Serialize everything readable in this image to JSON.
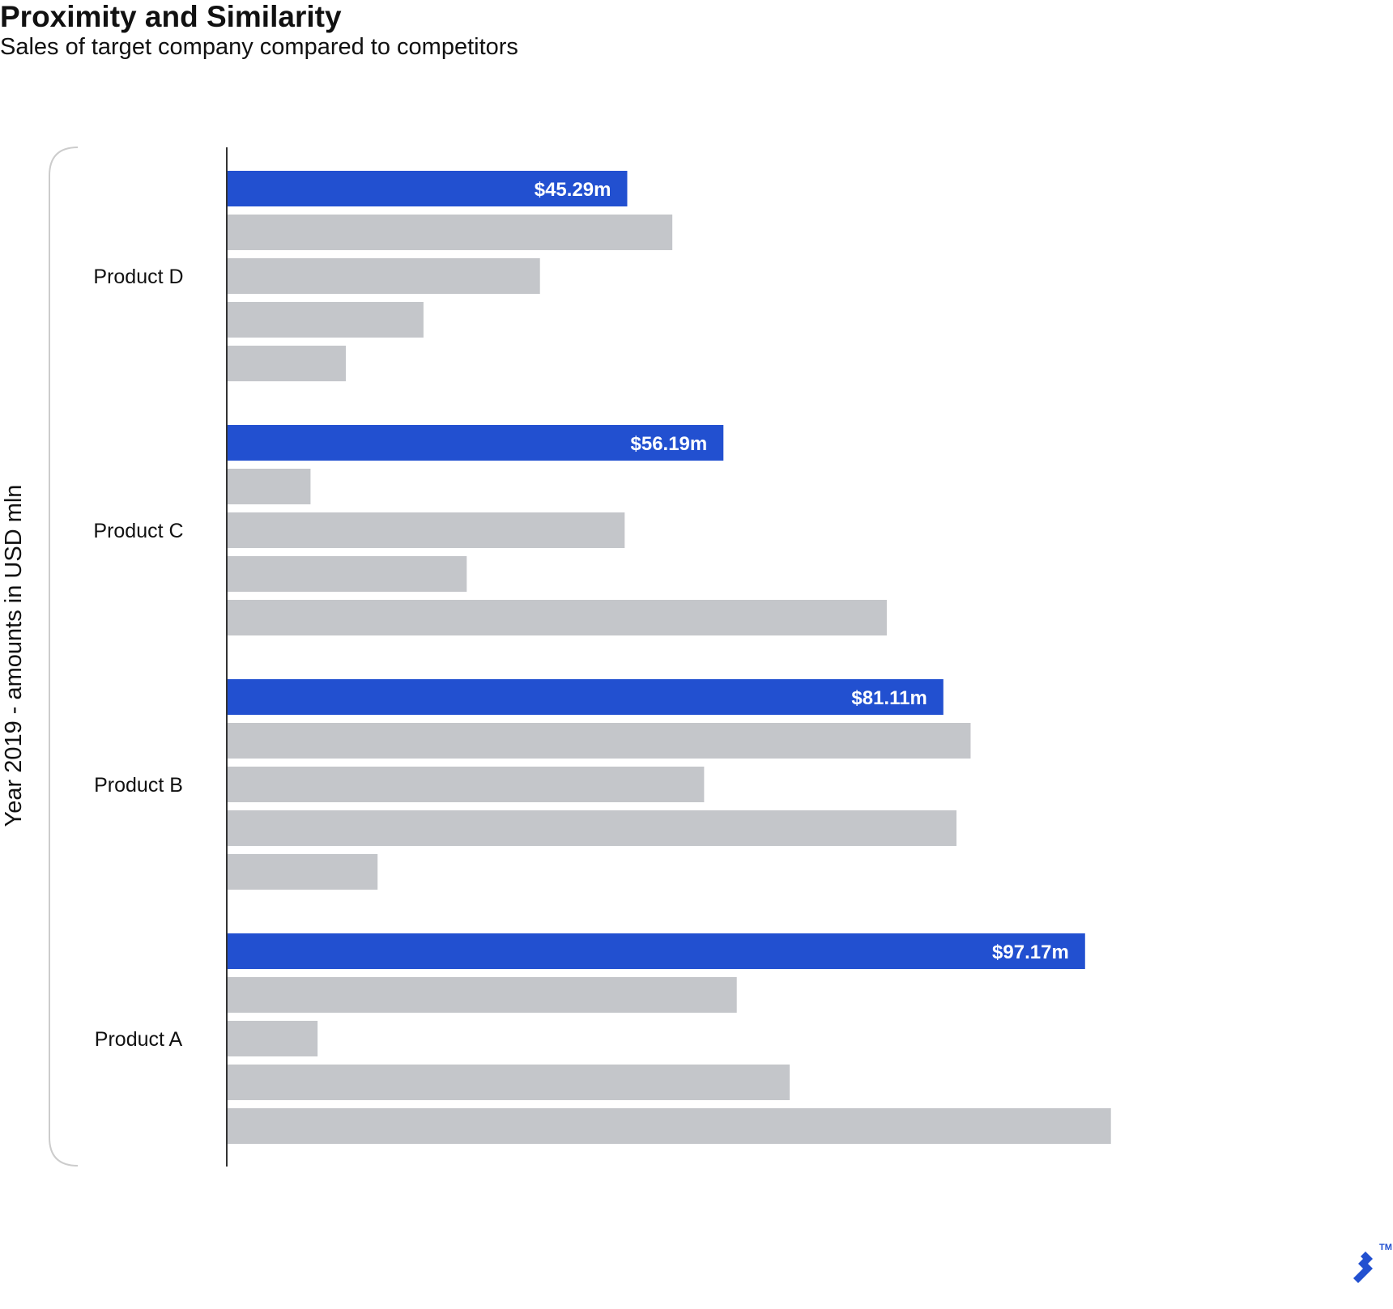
{
  "chart_data": {
    "type": "bar",
    "orientation": "horizontal",
    "title": "Proximity and Similarity",
    "subtitle": "Sales of target company compared to competitors",
    "ylabel": "Year 2019 - amounts in USD mln",
    "xlabel": "",
    "grid": false,
    "categories": [
      "Product D",
      "Product C",
      "Product B",
      "Product A"
    ],
    "xlim": [
      0,
      106
    ],
    "groups": [
      {
        "category": "Product D",
        "target": 45.29,
        "target_label": "$45.29m",
        "competitors": [
          50.4,
          35.4,
          22.2,
          13.4
        ]
      },
      {
        "category": "Product C",
        "target": 56.19,
        "target_label": "$56.19m",
        "competitors": [
          9.4,
          45.0,
          27.1,
          74.7
        ]
      },
      {
        "category": "Product B",
        "target": 81.11,
        "target_label": "$81.11m",
        "competitors": [
          84.2,
          54.0,
          82.6,
          17.0
        ]
      },
      {
        "category": "Product A",
        "target": 97.17,
        "target_label": "$97.17m",
        "competitors": [
          57.7,
          10.2,
          63.7,
          100.1
        ]
      }
    ],
    "colors": {
      "target": "#2250d0",
      "competitor": "#c4c6ca",
      "axis": "#333333",
      "bracket": "#cccccc"
    }
  },
  "logo": {
    "icon": "toptal-logo-icon",
    "trademark": "TM",
    "color": "#2250d0"
  }
}
